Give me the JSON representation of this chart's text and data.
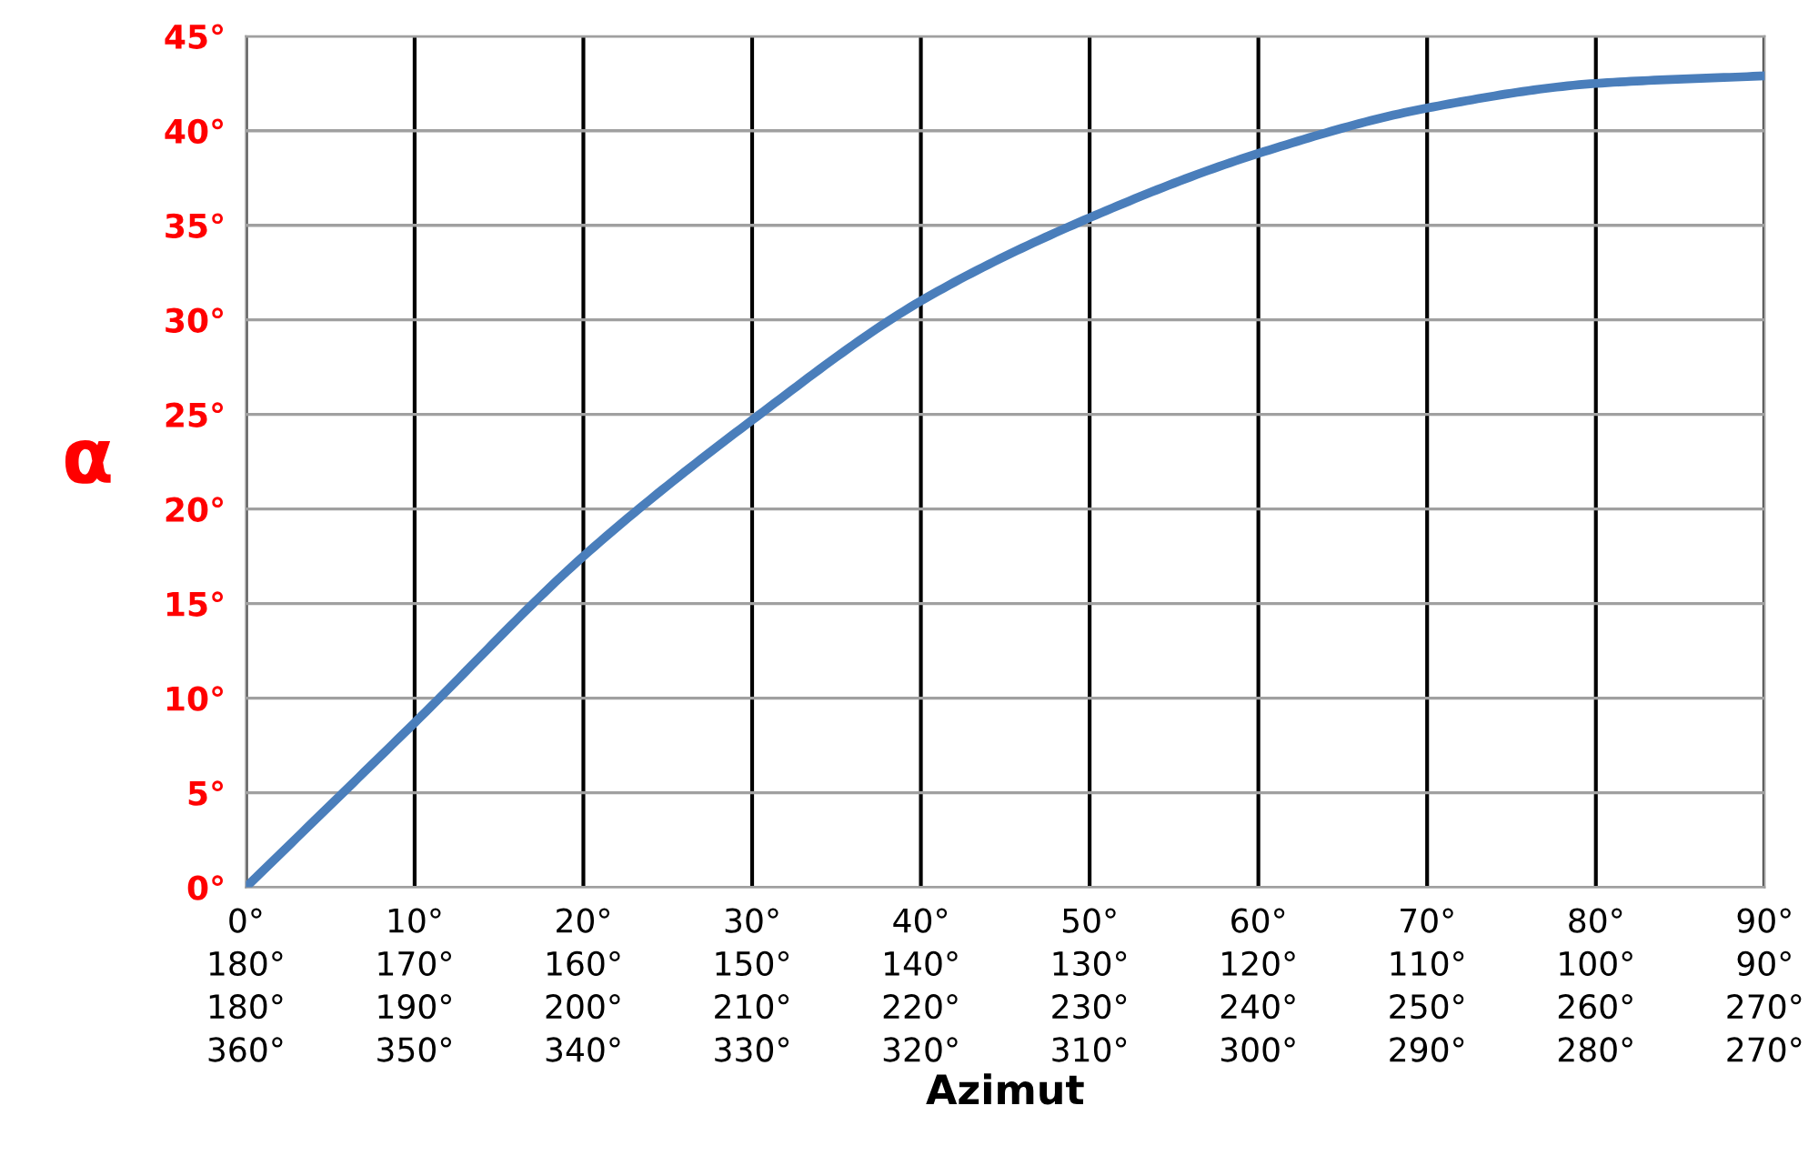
{
  "chart_data": {
    "type": "line",
    "xlabel": "Azimut",
    "ylabel": "α",
    "categories": [
      "0°\n180°\n180°\n360°",
      "10°\n170°\n190°\n350°",
      "20°\n160°\n200°\n340°",
      "30°\n150°\n210°\n330°",
      "40°\n140°\n220°\n320°",
      "50°\n130°\n230°\n310°",
      "60°\n120°\n240°\n300°",
      "70°\n110°\n250°\n290°",
      "80°\n100°\n260°\n280°",
      "90°\n90°\n270°\n270°"
    ],
    "series": [
      {
        "color": "#4a7ebb",
        "values": [
          0,
          8.7,
          17.5,
          24.7,
          31.0,
          35.4,
          38.8,
          41.2,
          42.5,
          42.9
        ]
      }
    ],
    "ylim": [
      0,
      45
    ],
    "yticks": [
      {
        "value": 0,
        "label": "0°"
      },
      {
        "value": 5,
        "label": "5°"
      },
      {
        "value": 10,
        "label": "10°"
      },
      {
        "value": 15,
        "label": "15°"
      },
      {
        "value": 20,
        "label": "20°"
      },
      {
        "value": 25,
        "label": "25°"
      },
      {
        "value": 30,
        "label": "30°"
      },
      {
        "value": 35,
        "label": "35°"
      },
      {
        "value": 40,
        "label": "40°"
      },
      {
        "value": 45,
        "label": "45°"
      }
    ],
    "grid": true,
    "marker": "none",
    "line_style": "solid"
  }
}
